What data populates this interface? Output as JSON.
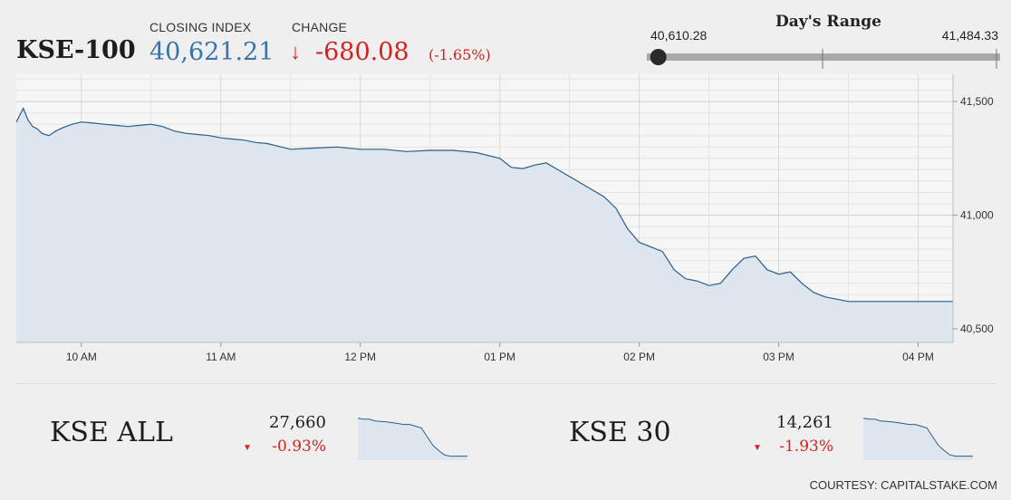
{
  "header": {
    "symbol": "KSE-100",
    "closing_label": "CLOSING INDEX",
    "closing_value": "40,621.21",
    "change_label": "CHANGE",
    "change_value": "-680.08",
    "change_pct": "(-1.65%)",
    "down_arrow": "↓"
  },
  "days_range": {
    "title": "Day's Range",
    "low_label": "40,610.28",
    "high_label": "41,484.33",
    "low": 40610.28,
    "high": 41484.33,
    "current": 40621.21
  },
  "chart_data": {
    "type": "area",
    "title": "",
    "xlabel": "",
    "ylabel": "",
    "x_ticks": [
      "10 AM",
      "11 AM",
      "12 PM",
      "01 PM",
      "02 PM",
      "03 PM",
      "04 PM"
    ],
    "y_ticks": [
      "41,500",
      "41,000",
      "40,500"
    ],
    "y_tick_values": [
      41500,
      41000,
      40500
    ],
    "xlim": [
      "09:32",
      "16:15"
    ],
    "ylim": [
      40440,
      41620
    ],
    "grid": true,
    "series": [
      {
        "x": [
          "09:32",
          "09:35",
          "09:37",
          "09:39",
          "09:41",
          "09:43",
          "09:46",
          "09:49",
          "09:52",
          "09:56",
          "10:00",
          "10:05",
          "10:10",
          "10:15",
          "10:20",
          "10:25",
          "10:30",
          "10:35",
          "10:40",
          "10:45",
          "10:50",
          "10:55",
          "11:00",
          "11:05",
          "11:10",
          "11:15",
          "11:20",
          "11:30",
          "11:40",
          "11:50",
          "12:00",
          "12:10",
          "12:20",
          "12:30",
          "12:40",
          "12:50",
          "13:00",
          "13:05",
          "13:10",
          "13:15",
          "13:20",
          "13:25",
          "13:30",
          "13:35",
          "13:40",
          "13:45",
          "13:50",
          "13:55",
          "14:00",
          "14:05",
          "14:10",
          "14:15",
          "14:20",
          "14:25",
          "14:30",
          "14:35",
          "14:40",
          "14:45",
          "14:50",
          "14:55",
          "15:00",
          "15:05",
          "15:10",
          "15:15",
          "15:20",
          "15:25",
          "15:30",
          "15:35",
          "16:15"
        ],
        "values": [
          41410,
          41470,
          41420,
          41390,
          41380,
          41360,
          41350,
          41370,
          41385,
          41400,
          41410,
          41405,
          41400,
          41395,
          41390,
          41395,
          41400,
          41390,
          41370,
          41360,
          41355,
          41350,
          41340,
          41335,
          41330,
          41320,
          41315,
          41290,
          41295,
          41300,
          41290,
          41290,
          41280,
          41285,
          41285,
          41275,
          41250,
          41210,
          41205,
          41220,
          41230,
          41200,
          41170,
          41140,
          41110,
          41080,
          41030,
          40940,
          40880,
          40860,
          40840,
          40760,
          40720,
          40710,
          40690,
          40700,
          40760,
          40810,
          40820,
          40760,
          40740,
          40750,
          40700,
          40660,
          40640,
          40630,
          40620,
          40620,
          40620
        ]
      }
    ]
  },
  "mini": [
    {
      "name": "KSE ALL",
      "value": "27,660",
      "change": "-0.93%",
      "arrow": "▼",
      "spark": [
        0.92,
        0.9,
        0.9,
        0.86,
        0.85,
        0.84,
        0.82,
        0.8,
        0.78,
        0.78,
        0.74,
        0.7,
        0.5,
        0.3,
        0.18,
        0.08,
        0.05,
        0.05,
        0.05,
        0.05
      ]
    },
    {
      "name": "KSE 30",
      "value": "14,261",
      "change": "-1.93%",
      "arrow": "▼",
      "spark": [
        0.92,
        0.9,
        0.9,
        0.86,
        0.85,
        0.84,
        0.82,
        0.8,
        0.78,
        0.78,
        0.74,
        0.7,
        0.5,
        0.3,
        0.18,
        0.08,
        0.05,
        0.05,
        0.05,
        0.05
      ]
    }
  ],
  "courtesy": "COURTESY: CAPITALSTAKE.COM"
}
